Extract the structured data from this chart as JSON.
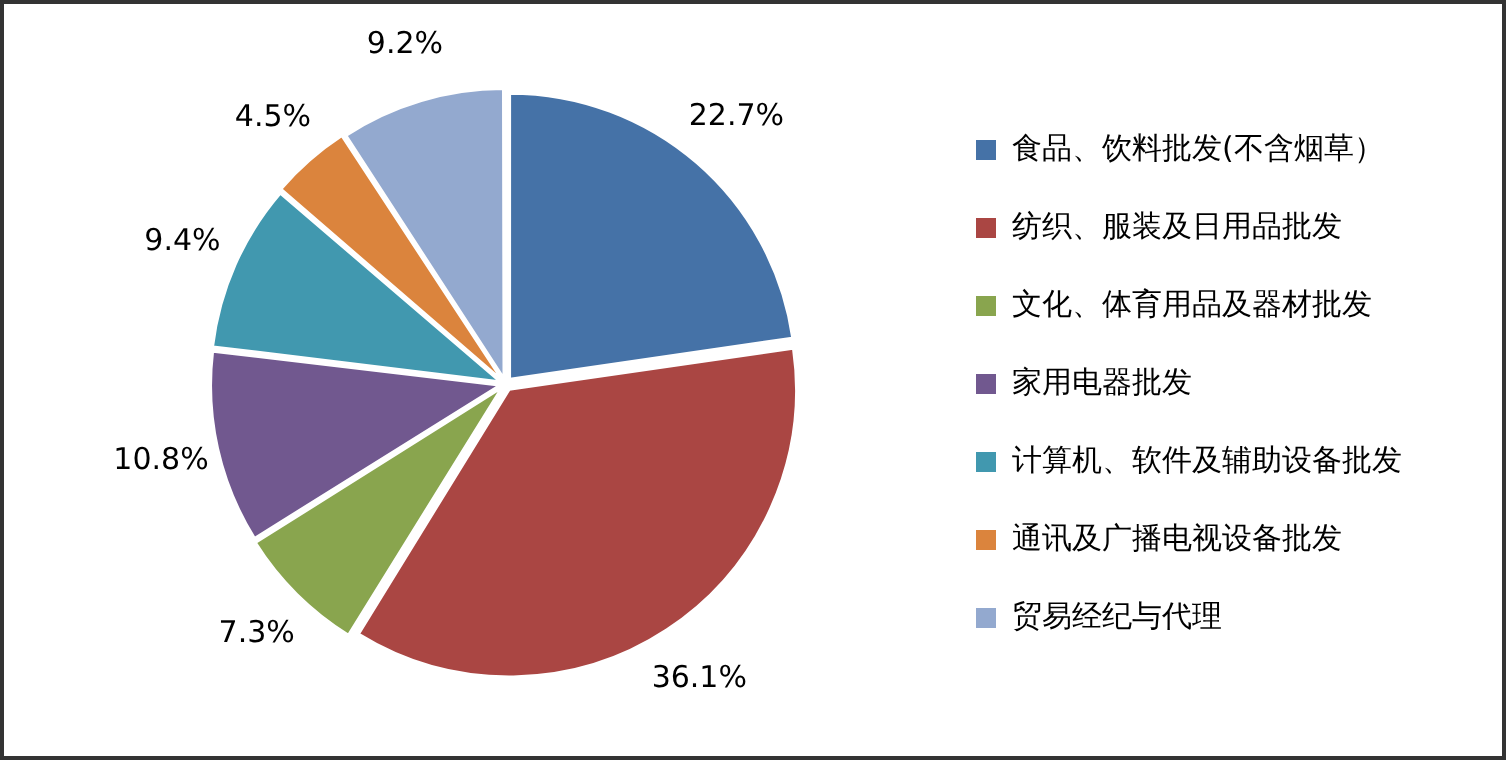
{
  "chart_data": {
    "type": "pie",
    "categories": [
      "食品、饮料批发(不含烟草）",
      "纺织、服装及日用品批发",
      "文化、体育用品及器材批发",
      "家用电器批发",
      "计算机、软件及辅助设备批发",
      "通讯及广播电视设备批发",
      "贸易经纪与代理"
    ],
    "values": [
      22.7,
      36.1,
      7.3,
      10.8,
      9.4,
      4.5,
      9.2
    ],
    "colors": [
      "#4572a7",
      "#aa4643",
      "#89a54e",
      "#71588f",
      "#4198af",
      "#db843d",
      "#93a9cf"
    ],
    "value_labels": [
      "22.7%",
      "36.1%",
      "7.3%",
      "10.8%",
      "9.4%",
      "4.5%",
      "9.2%"
    ],
    "legend": "right"
  }
}
